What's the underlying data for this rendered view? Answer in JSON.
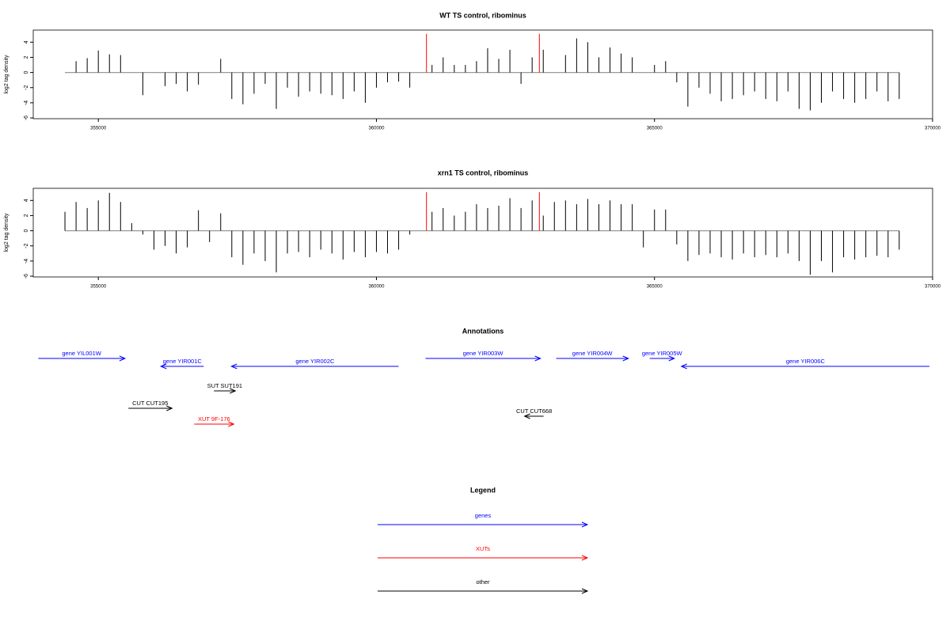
{
  "chart_data": [
    {
      "type": "bar",
      "title": "WT TS control, ribominus",
      "ylabel": "log2 tag density",
      "xlim": [
        353830,
        370000
      ],
      "xticks": [
        355000,
        360000,
        365000,
        370000
      ],
      "ylim": [
        -6.1,
        5.6
      ],
      "yticks": [
        -6,
        -4,
        -2,
        0,
        2,
        4
      ],
      "series": [
        {
          "color": "#000000",
          "x": [
            354400,
            354600,
            354800,
            355000,
            355200,
            355400,
            355600,
            355800,
            356000,
            356200,
            356400,
            356600,
            356800,
            357000,
            357200,
            357400,
            357600,
            357800,
            358000,
            358200,
            358400,
            358600,
            358800,
            359000,
            359200,
            359400,
            359600,
            359800,
            360000,
            360200,
            360400,
            360600,
            360800,
            361000,
            361200,
            361400,
            361600,
            361800,
            362000,
            362200,
            362400,
            362600,
            362800,
            363000,
            363200,
            363400,
            363600,
            363800,
            364000,
            364200,
            364400,
            364600,
            364800,
            365000,
            365200,
            365400,
            365600,
            365800,
            366000,
            366200,
            366400,
            366600,
            366800,
            367000,
            367200,
            367400,
            367600,
            367800,
            368000,
            368200,
            368400,
            368600,
            368800,
            369000,
            369200,
            369400
          ],
          "values": [
            0,
            1.5,
            1.9,
            2.9,
            2.4,
            2.3,
            0,
            -3,
            0,
            -1.8,
            -1.5,
            -2.5,
            -1.6,
            0,
            1.8,
            -3.5,
            -4.2,
            -2.8,
            -1.5,
            -4.8,
            -2,
            -3.2,
            -2.5,
            -2.8,
            -3,
            -3.5,
            -2.5,
            -4,
            -2,
            -1.3,
            -1.2,
            -2,
            0,
            1,
            2,
            1,
            1,
            1.5,
            3.2,
            1.8,
            3,
            -1.5,
            2,
            3,
            0,
            2.3,
            4.5,
            4,
            2,
            3.3,
            2.5,
            2,
            0,
            1,
            1.5,
            -1.3,
            -4.5,
            -2,
            -2.8,
            -3.8,
            -3.5,
            -3,
            -2.5,
            -3.5,
            -3.8,
            -2.5,
            -4.8,
            -5,
            -4,
            -2.5,
            -3.5,
            -4,
            -3.5,
            -2.5,
            -3.8,
            -3.5
          ]
        },
        {
          "color": "#ff0000",
          "x": [
            360900,
            362930
          ],
          "values": [
            5.1,
            5.1
          ]
        }
      ]
    },
    {
      "type": "bar",
      "title": "xrn1 TS control, ribominus",
      "ylabel": "log2 tag density",
      "xlim": [
        353830,
        370000
      ],
      "xticks": [
        355000,
        360000,
        365000,
        370000
      ],
      "ylim": [
        -6.1,
        5.6
      ],
      "yticks": [
        -6,
        -4,
        -2,
        0,
        2,
        4
      ],
      "series": [
        {
          "color": "#000000",
          "x": [
            354400,
            354600,
            354800,
            355000,
            355200,
            355400,
            355600,
            355800,
            356000,
            356200,
            356400,
            356600,
            356800,
            357000,
            357200,
            357400,
            357600,
            357800,
            358000,
            358200,
            358400,
            358600,
            358800,
            359000,
            359200,
            359400,
            359600,
            359800,
            360000,
            360200,
            360400,
            360600,
            360800,
            361000,
            361200,
            361400,
            361600,
            361800,
            362000,
            362200,
            362400,
            362600,
            362800,
            363000,
            363200,
            363400,
            363600,
            363800,
            364000,
            364200,
            364400,
            364600,
            364800,
            365000,
            365200,
            365400,
            365600,
            365800,
            366000,
            366200,
            366400,
            366600,
            366800,
            367000,
            367200,
            367400,
            367600,
            367800,
            368000,
            368200,
            368400,
            368600,
            368800,
            369000,
            369200,
            369400
          ],
          "values": [
            2.5,
            3.8,
            3,
            4,
            5,
            3.8,
            1,
            -0.5,
            -2.5,
            -2,
            -3,
            -2.2,
            2.7,
            -1.5,
            2.3,
            -3.5,
            -4.5,
            -3,
            -4,
            -5.5,
            -3,
            -2.8,
            -3.5,
            -2.5,
            -3,
            -3.8,
            -2.8,
            -3.5,
            -2.8,
            -3,
            -2.5,
            -0.5,
            0,
            2.5,
            3,
            2,
            2.5,
            3.5,
            3,
            3.3,
            4.3,
            3,
            4,
            2,
            3.8,
            4,
            3.5,
            4.2,
            3.5,
            4,
            3.5,
            3.5,
            -2.2,
            2.8,
            2.8,
            -1.8,
            -4,
            -3.2,
            -3,
            -3.5,
            -3.8,
            -3,
            -3.5,
            -3.2,
            -3.5,
            -3,
            -4,
            -5.8,
            -4,
            -5.5,
            -3.5,
            -3.8,
            -3.5,
            -3.3,
            -3.5,
            -2.5
          ]
        },
        {
          "color": "#ff0000",
          "x": [
            360900,
            362930
          ],
          "values": [
            5.1,
            5.1
          ]
        }
      ]
    }
  ],
  "annotations": {
    "title": "Annotations",
    "features": [
      {
        "label": "gene YIL001W",
        "start": 353920,
        "end": 355480,
        "strand": "+",
        "color": "#0000ff"
      },
      {
        "label": "gene YIR001C",
        "start": 356125,
        "end": 356895,
        "strand": "-",
        "color": "#0000ff"
      },
      {
        "label": "gene YIR002C",
        "start": 357393,
        "end": 360399,
        "strand": "-",
        "color": "#0000ff"
      },
      {
        "label": "gene YIR003W",
        "start": 360883,
        "end": 362949,
        "strand": "+",
        "color": "#0000ff"
      },
      {
        "label": "gene YIR004W",
        "start": 363233,
        "end": 364530,
        "strand": "+",
        "color": "#0000ff"
      },
      {
        "label": "gene YIR005W",
        "start": 364914,
        "end": 365356,
        "strand": "+",
        "color": "#0000ff"
      },
      {
        "label": "gene YIR006C",
        "start": 365484,
        "end": 369943,
        "strand": "-",
        "color": "#0000ff"
      },
      {
        "label": "SUT SUT191",
        "start": 357080,
        "end": 357464,
        "strand": "+",
        "color": "#000000"
      },
      {
        "label": "CUT CUT195",
        "start": 355541,
        "end": 356325,
        "strand": "+",
        "color": "#000000"
      },
      {
        "label": "XUT 9F-176",
        "start": 356724,
        "end": 357436,
        "strand": "+",
        "color": "#ff0000"
      },
      {
        "label": "CUT CUT668",
        "start": 362664,
        "end": 363006,
        "strand": "-",
        "color": "#000000"
      }
    ]
  },
  "legend": {
    "title": "Legend",
    "items": [
      {
        "label": "genes",
        "color": "#0000ff"
      },
      {
        "label": "XUTs",
        "color": "#ff0000"
      },
      {
        "label": "other",
        "color": "#000000"
      }
    ]
  }
}
